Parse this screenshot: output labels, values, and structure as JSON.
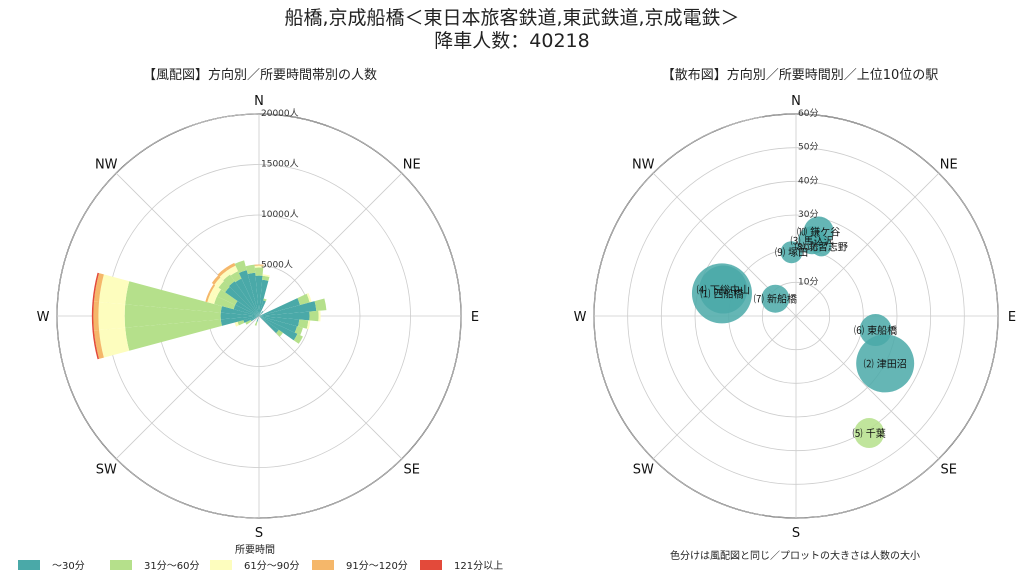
{
  "title_line1": "船橋,京成船橋＜東日本旅客鉄道,東武鉄道,京成電鉄＞",
  "title_line2": "降車人数：40218",
  "directions": [
    "N",
    "NE",
    "E",
    "SE",
    "S",
    "SW",
    "W",
    "NW"
  ],
  "colors": {
    "c30": "#4aa9a8",
    "c60": "#b5e08b",
    "c90": "#fdfdbe",
    "c120": "#f5b76a",
    "c121": "#e34a3a"
  },
  "chart_data": [
    {
      "type": "bar",
      "subtype": "polar-stacked-bar",
      "title": "【風配図】方向別／所要時間帯別の人数",
      "r_ticks": [
        "5000人",
        "10000人",
        "15000人",
        "20000人"
      ],
      "r_tick_values": [
        5000,
        10000,
        15000,
        20000
      ],
      "rmax": 20000,
      "legend_title": "所要時間",
      "series_names": [
        "～30分",
        "31分～60分",
        "61分～90分",
        "91分～120分",
        "121分以上"
      ],
      "sectors": [
        {
          "deg": 0,
          "values": [
            4000,
            800,
            200,
            100,
            0
          ]
        },
        {
          "deg": 10,
          "values": [
            3600,
            400,
            150,
            0,
            0
          ]
        },
        {
          "deg": 20,
          "values": [
            1600,
            200,
            0,
            0,
            0
          ]
        },
        {
          "deg": 40,
          "values": [
            600,
            0,
            0,
            0,
            0
          ]
        },
        {
          "deg": 70,
          "values": [
            4200,
            1000,
            200,
            0,
            0
          ]
        },
        {
          "deg": 80,
          "values": [
            5700,
            1000,
            0,
            0,
            0
          ]
        },
        {
          "deg": 90,
          "values": [
            5000,
            900,
            200,
            0,
            0
          ]
        },
        {
          "deg": 100,
          "values": [
            4000,
            900,
            200,
            0,
            0
          ]
        },
        {
          "deg": 110,
          "values": [
            3900,
            600,
            0,
            0,
            0
          ]
        },
        {
          "deg": 120,
          "values": [
            4200,
            600,
            0,
            0,
            0
          ]
        },
        {
          "deg": 130,
          "values": [
            2400,
            500,
            0,
            0,
            0
          ]
        },
        {
          "deg": 200,
          "values": [
            600,
            400,
            0,
            0,
            0
          ]
        },
        {
          "deg": 240,
          "values": [
            900,
            600,
            0,
            0,
            0
          ]
        },
        {
          "deg": 250,
          "values": [
            1600,
            600,
            300,
            0,
            0
          ]
        },
        {
          "deg": 260,
          "values": [
            3800,
            9500,
            2600,
            500,
            150
          ]
        },
        {
          "deg": 270,
          "values": [
            3800,
            9500,
            2600,
            500,
            150
          ]
        },
        {
          "deg": 280,
          "values": [
            3800,
            9500,
            2600,
            500,
            150
          ]
        },
        {
          "deg": 290,
          "values": [
            2600,
            2000,
            700,
            200,
            0
          ]
        },
        {
          "deg": 300,
          "values": [
            2600,
            2000,
            700,
            200,
            0
          ]
        },
        {
          "deg": 310,
          "values": [
            4100,
            800,
            500,
            300,
            0
          ]
        },
        {
          "deg": 320,
          "values": [
            4200,
            800,
            500,
            300,
            0
          ]
        },
        {
          "deg": 330,
          "values": [
            4100,
            800,
            600,
            300,
            0
          ]
        },
        {
          "deg": 340,
          "values": [
            4700,
            1000,
            0,
            0,
            0
          ]
        },
        {
          "deg": 350,
          "values": [
            4300,
            800,
            0,
            0,
            0
          ]
        }
      ]
    },
    {
      "type": "scatter",
      "subtype": "polar-bubble",
      "title": "【散布図】方向別／所要時間別／上位10位の駅",
      "r_ticks": [
        "10分",
        "20分",
        "30分",
        "40分",
        "50分",
        "60分"
      ],
      "r_tick_values": [
        10,
        20,
        30,
        40,
        50,
        60
      ],
      "rmax": 60,
      "note": "色分けは風配図と同じ／プロットの大きさは人数の大小",
      "points": [
        {
          "label": "⑴ 西船橋",
          "deg": 287,
          "minutes": 23,
          "size": 30,
          "band": "c30"
        },
        {
          "label": "⑵ 津田沼",
          "deg": 118,
          "minutes": 30,
          "size": 29,
          "band": "c30"
        },
        {
          "label": "⑷ 下総中山",
          "deg": 290,
          "minutes": 23,
          "size": 24,
          "band": "c30"
        },
        {
          "label": "⑹ 東船橋",
          "deg": 100,
          "minutes": 24,
          "size": 16,
          "band": "c30"
        },
        {
          "label": "⑺ 新船橋",
          "deg": 310,
          "minutes": 8,
          "size": 14,
          "band": "c30"
        },
        {
          "label": "⑽ 鎌ケ谷",
          "deg": 15,
          "minutes": 26,
          "size": 15,
          "band": "c30"
        },
        {
          "label": "⑶ 馬込沢",
          "deg": 12,
          "minutes": 23,
          "size": 14,
          "band": "c30"
        },
        {
          "label": "⑼ 塚田",
          "deg": 356,
          "minutes": 19,
          "size": 11,
          "band": "c30"
        },
        {
          "label": "⑻ 北習志野",
          "deg": 20,
          "minutes": 22,
          "size": 10,
          "band": "c30"
        },
        {
          "label": "⑸ 千葉",
          "deg": 148,
          "minutes": 41,
          "size": 15,
          "band": "c60"
        }
      ]
    }
  ]
}
